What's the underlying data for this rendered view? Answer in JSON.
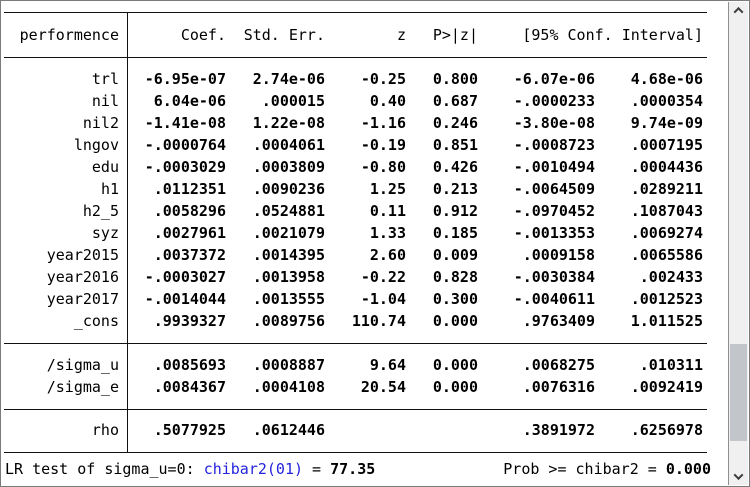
{
  "window": {
    "depvar": "performence"
  },
  "table": {
    "headers": {
      "coef": "Coef.",
      "std_err": "Std. Err.",
      "z": "z",
      "p": "P>|z|",
      "ci": "[95% Conf. Interval]"
    },
    "body_rows": [
      {
        "label": "trl",
        "cells": [
          "-6.95e-07",
          "2.74e-06",
          "-0.25",
          "0.800",
          "-6.07e-06",
          "4.68e-06"
        ]
      },
      {
        "label": "nil",
        "cells": [
          "6.04e-06",
          ".000015",
          "0.40",
          "0.687",
          "-.0000233",
          ".0000354"
        ]
      },
      {
        "label": "nil2",
        "cells": [
          "-1.41e-08",
          "1.22e-08",
          "-1.16",
          "0.246",
          "-3.80e-08",
          "9.74e-09"
        ]
      },
      {
        "label": "lngov",
        "cells": [
          "-.0000764",
          ".0004061",
          "-0.19",
          "0.851",
          "-.0008723",
          ".0007195"
        ]
      },
      {
        "label": "edu",
        "cells": [
          "-.0003029",
          ".0003809",
          "-0.80",
          "0.426",
          "-.0010494",
          ".0004436"
        ]
      },
      {
        "label": "h1",
        "cells": [
          ".0112351",
          ".0090236",
          "1.25",
          "0.213",
          "-.0064509",
          ".0289211"
        ]
      },
      {
        "label": "h2_5",
        "cells": [
          ".0058296",
          ".0524881",
          "0.11",
          "0.912",
          "-.0970452",
          ".1087043"
        ]
      },
      {
        "label": "syz",
        "cells": [
          ".0027961",
          ".0021079",
          "1.33",
          "0.185",
          "-.0013353",
          ".0069274"
        ]
      },
      {
        "label": "year2015",
        "cells": [
          ".0037372",
          ".0014395",
          "2.60",
          "0.009",
          ".0009158",
          ".0065586"
        ]
      },
      {
        "label": "year2016",
        "cells": [
          "-.0003027",
          ".0013958",
          "-0.22",
          "0.828",
          "-.0030384",
          ".002433"
        ]
      },
      {
        "label": "year2017",
        "cells": [
          "-.0014044",
          ".0013555",
          "-1.04",
          "0.300",
          "-.0040611",
          ".0012523"
        ]
      },
      {
        "label": "_cons",
        "cells": [
          ".9939327",
          ".0089756",
          "110.74",
          "0.000",
          ".9763409",
          "1.011525"
        ]
      }
    ],
    "sigma_rows": [
      {
        "label": "/sigma_u",
        "cells": [
          ".0085693",
          ".0008887",
          "9.64",
          "0.000",
          ".0068275",
          ".010311"
        ]
      },
      {
        "label": "/sigma_e",
        "cells": [
          ".0084367",
          ".0004108",
          "20.54",
          "0.000",
          ".0076316",
          ".0092419"
        ]
      }
    ],
    "rho_row": {
      "label": "rho",
      "cells": [
        ".5077925",
        ".0612446",
        "",
        "",
        ".3891972",
        ".6256978"
      ]
    }
  },
  "footer": {
    "lr_label": "LR test of sigma_u=0: ",
    "chibar_link": "chibar2(01)",
    "equals": " = ",
    "lr_value": "77.35",
    "prob_label": "Prob >= chibar2 = ",
    "prob_value": "0.000"
  },
  "scrollbar": {
    "up_icon": "chevron-up",
    "down_icon": "chevron-down"
  },
  "colors": {
    "link_blue": "#2323dd",
    "rule": "#111111",
    "scroll_track": "#f0f0f0",
    "scroll_thumb": "#c2c5c9"
  }
}
